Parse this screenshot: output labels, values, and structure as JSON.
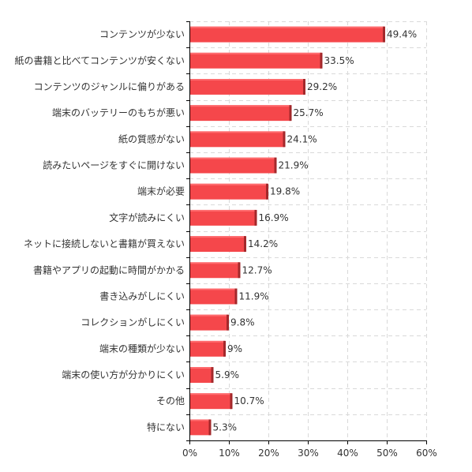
{
  "chart_data": {
    "type": "bar",
    "orientation": "horizontal",
    "title": "",
    "xlabel": "",
    "ylabel": "",
    "categories": [
      "コンテンツが少ない",
      "紙の書籍と比べてコンテンツが安くない",
      "コンテンツのジャンルに偏りがある",
      "端末のバッテリーのもちが悪い",
      "紙の質感がない",
      "読みたいページをすぐに開けない",
      "端末が必要",
      "文字が読みにくい",
      "ネットに接続しないと書籍が買えない",
      "書籍やアプリの起動に時間がかかる",
      "書き込みがしにくい",
      "コレクションがしにくい",
      "端末の種類が少ない",
      "端末の使い方が分かりにくい",
      "その他",
      "特にない"
    ],
    "values": [
      49.4,
      33.5,
      29.2,
      25.7,
      24.1,
      21.9,
      19.8,
      16.9,
      14.2,
      12.7,
      11.9,
      9.8,
      9,
      5.9,
      10.7,
      5.3
    ],
    "value_labels": [
      "49.4%",
      "33.5%",
      "29.2%",
      "25.7%",
      "24.1%",
      "21.9%",
      "19.8%",
      "16.9%",
      "14.2%",
      "12.7%",
      "11.9%",
      "9.8%",
      "9%",
      "5.9%",
      "10.7%",
      "5.3%"
    ],
    "xlim": [
      0,
      60
    ],
    "xticks": [
      0,
      10,
      20,
      30,
      40,
      50,
      60
    ],
    "xtick_labels": [
      "0%",
      "10%",
      "20%",
      "30%",
      "40%",
      "50%",
      "60%"
    ],
    "grid": true,
    "legend": "none",
    "colors": {
      "bar": "#f5474b",
      "bar_top": "#ff6b6e",
      "bar_edge": "#a3282b"
    }
  }
}
